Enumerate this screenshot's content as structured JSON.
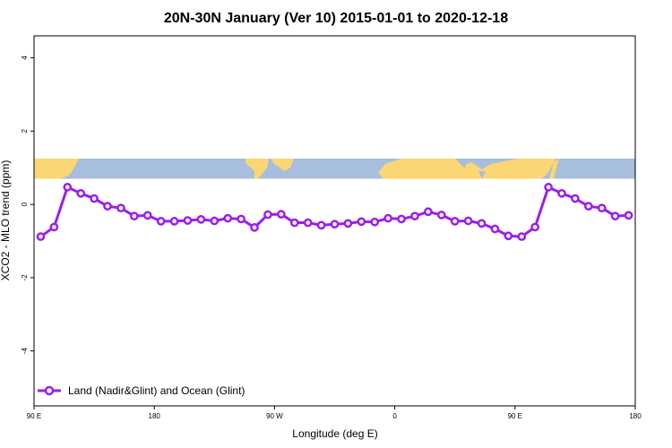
{
  "chart_data": {
    "type": "line",
    "title": "20N-30N January (Ver 10)   2015-01-01 to 2020-12-18",
    "xlabel": "Longitude (deg E)",
    "ylabel": "XCO2 - MLO trend (ppm)",
    "xlim": [
      90,
      540
    ],
    "ylim": [
      -5.5,
      4.6
    ],
    "x_ticks": [
      {
        "value": 90,
        "label": "90 E"
      },
      {
        "value": 180,
        "label": "180"
      },
      {
        "value": 270,
        "label": "90 W"
      },
      {
        "value": 360,
        "label": "0"
      },
      {
        "value": 450,
        "label": "90 E"
      },
      {
        "value": 540,
        "label": "180"
      }
    ],
    "y_ticks": [
      {
        "value": 4,
        "label": "4"
      },
      {
        "value": 2,
        "label": "2"
      },
      {
        "value": 0,
        "label": "0"
      },
      {
        "value": -2,
        "label": "-2"
      },
      {
        "value": -4,
        "label": "-4"
      }
    ],
    "map_band": {
      "y_range": [
        0.7,
        1.25
      ],
      "ocean_color": "#a7bedd",
      "land_color": "#fbd774"
    },
    "legend_position": "bottom-left",
    "series": [
      {
        "name": "Land (Nadir&Glint) and Ocean (Glint)",
        "color": "#9b1fe8",
        "x": [
          95,
          105,
          115,
          125,
          135,
          145,
          155,
          165,
          175,
          185,
          195,
          205,
          215,
          225,
          235,
          245,
          255,
          265,
          275,
          285,
          295,
          305,
          315,
          325,
          335,
          345,
          355,
          365,
          375,
          385,
          395,
          405,
          415,
          425,
          435,
          445,
          455,
          465,
          475,
          485,
          495,
          505,
          515,
          525,
          535
        ],
        "y": [
          -0.88,
          -0.62,
          0.47,
          0.3,
          0.16,
          -0.05,
          -0.1,
          -0.32,
          -0.3,
          -0.46,
          -0.46,
          -0.44,
          -0.41,
          -0.45,
          -0.38,
          -0.4,
          -0.63,
          -0.28,
          -0.27,
          -0.5,
          -0.5,
          -0.57,
          -0.54,
          -0.52,
          -0.47,
          -0.48,
          -0.38,
          -0.4,
          -0.32,
          -0.2,
          -0.29,
          -0.46,
          -0.45,
          -0.52,
          -0.67,
          -0.86,
          -0.88,
          -0.62,
          0.47,
          0.3,
          0.16,
          -0.05,
          -0.1,
          -0.32,
          -0.3
        ]
      }
    ]
  }
}
